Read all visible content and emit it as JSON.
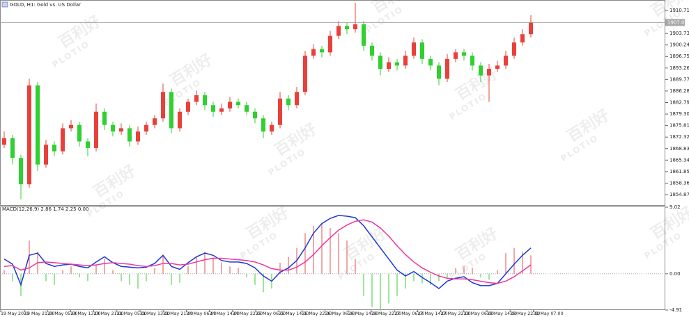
{
  "chart_data": [
    {
      "type": "candlestick",
      "title": "GOLD, H1: Gold vs. US Dollar",
      "ylim": [
        1851.71,
        1913.87
      ],
      "yticks": [
        1854.87,
        1858.36,
        1861.85,
        1865.34,
        1868.83,
        1872.32,
        1875.81,
        {
          "value": 1879.3,
          "label": "1879.30"
        },
        1882.79,
        1886.28,
        1889.77,
        1893.26,
        1896.75,
        1900.24,
        1903.73,
        1910.71
      ],
      "current_price": 1907.06,
      "up_color": "#e8403a",
      "down_color": "#2fd02f",
      "open": [
        1870,
        1872,
        1866,
        1858,
        1888,
        1864,
        1870,
        1868,
        1875,
        1876,
        1871,
        1869,
        1880,
        1876,
        1874,
        1875,
        1871,
        1874,
        1876,
        1878,
        1886,
        1875,
        1880,
        1883,
        1885,
        1882,
        1880,
        1881,
        1883,
        1882,
        1880,
        1878,
        1874,
        1876,
        1884,
        1882,
        1886,
        1897,
        1899,
        1898,
        1903,
        1906,
        1905,
        1906.5,
        1900,
        1897,
        1893,
        1895,
        1894,
        1897,
        1901,
        1896,
        1894,
        1890,
        1896,
        1898,
        1897,
        1894,
        1891,
        1893,
        1894,
        1897,
        1901,
        1903.5
      ],
      "high": [
        1874,
        1873,
        1867,
        1890,
        1889,
        1871.5,
        1871,
        1876.5,
        1877.5,
        1877,
        1872,
        1882.5,
        1881,
        1877,
        1876.5,
        1876,
        1875.5,
        1877,
        1879,
        1888.5,
        1887,
        1881,
        1884,
        1886.5,
        1886,
        1883,
        1882.5,
        1884.5,
        1884,
        1883,
        1881,
        1879,
        1877,
        1886,
        1885,
        1887.5,
        1898.5,
        1900.5,
        1900,
        1904.5,
        1907.5,
        1907,
        1913,
        1907.5,
        1901,
        1898,
        1896.5,
        1896,
        1898.5,
        1902.5,
        1902,
        1897,
        1895,
        1897.5,
        1899,
        1899,
        1898,
        1895,
        1894.5,
        1895.5,
        1898.5,
        1902.5,
        1905,
        1909.3
      ],
      "low": [
        1869,
        1864,
        1853.5,
        1857,
        1862,
        1863,
        1866.5,
        1867,
        1874,
        1869.5,
        1866.5,
        1868,
        1874.5,
        1872.5,
        1873,
        1869.5,
        1870,
        1873,
        1875,
        1877,
        1873.5,
        1874,
        1879,
        1882,
        1880.5,
        1878.5,
        1879,
        1880,
        1881,
        1879,
        1876.5,
        1872,
        1873,
        1875,
        1880.5,
        1881,
        1885,
        1896,
        1896.5,
        1897,
        1902,
        1903.5,
        1904,
        1898.5,
        1895.5,
        1891,
        1892,
        1892.5,
        1893,
        1896,
        1894.5,
        1892.5,
        1888,
        1889,
        1895,
        1895.5,
        1892.5,
        1889,
        1883,
        1892,
        1893,
        1896,
        1900,
        1902.5
      ],
      "close": [
        1872,
        1866,
        1858,
        1888,
        1864,
        1870,
        1868,
        1875,
        1876,
        1871,
        1869,
        1880,
        1876,
        1874,
        1875,
        1871,
        1874,
        1876,
        1878,
        1886,
        1875,
        1880,
        1883,
        1885,
        1882,
        1880,
        1881,
        1883,
        1882,
        1880,
        1878,
        1874,
        1876,
        1884,
        1882,
        1886,
        1897,
        1899,
        1898,
        1903,
        1906,
        1905,
        1906.5,
        1900,
        1897,
        1893,
        1895,
        1894,
        1897,
        1901,
        1896,
        1894,
        1890,
        1896,
        1898,
        1897,
        1894,
        1891,
        1893,
        1894,
        1897,
        1901,
        1903.5,
        1907
      ]
    },
    {
      "type": "macd",
      "title": "MACD(12,26,9) 2.86 1.74 2.25 0.00",
      "ylim": [
        -4.91,
        9.02
      ],
      "yticks": [
        9.02,
        {
          "value": 0,
          "label": "0.00"
        },
        -4.91
      ],
      "lines": [
        {
          "color": "#1a35d8",
          "values": [
            2,
            1.3,
            -1.5,
            2.5,
            2.8,
            1.4,
            1,
            1.2,
            1.3,
            1,
            0.8,
            1.6,
            2.3,
            1.5,
            1,
            0.9,
            0.8,
            0.9,
            1.4,
            2.5,
            1,
            0.6,
            1.5,
            2.3,
            2.8,
            2.5,
            1.8,
            1.6,
            1.6,
            1.4,
            0.8,
            -0.3,
            -1,
            0.2,
            0.8,
            1.8,
            3.5,
            5.5,
            6.8,
            7.5,
            7.9,
            7.8,
            7.6,
            6.5,
            5,
            3.5,
            2,
            0.5,
            -0.3,
            0.3,
            -0.5,
            -1.2,
            -2,
            -1,
            -0.6,
            -0.4,
            -1.2,
            -1.6,
            -1.6,
            -1.3,
            0,
            1.3,
            2.5,
            3.5
          ]
        },
        {
          "color": "#f0369b",
          "values": [
            1,
            1.1,
            0.5,
            0.8,
            1.5,
            1.6,
            1.5,
            1.4,
            1.3,
            1.2,
            1.1,
            1.2,
            1.4,
            1.5,
            1.4,
            1.3,
            1.1,
            1,
            1.1,
            1.4,
            1.4,
            1.2,
            1.3,
            1.6,
            1.9,
            2.1,
            2.1,
            2,
            1.9,
            1.8,
            1.6,
            1.2,
            0.7,
            0.5,
            0.5,
            0.9,
            1.6,
            2.6,
            3.8,
            4.9,
            5.9,
            6.6,
            7.1,
            7.3,
            7,
            6.2,
            5.1,
            3.8,
            2.6,
            1.6,
            0.8,
            0.2,
            -0.3,
            -0.6,
            -0.7,
            -0.7,
            -0.8,
            -1,
            -1.2,
            -1.3,
            -1,
            -0.4,
            0.4,
            1.2
          ]
        }
      ],
      "histogram": {
        "up_color": "#f08080",
        "down_color": "#6fdc6f",
        "values": [
          0.5,
          -1,
          -3,
          4.5,
          3,
          -1,
          -1.5,
          0.5,
          1,
          -0.5,
          -1,
          1.2,
          2,
          0.5,
          -1,
          -1.5,
          -2,
          -1,
          0.8,
          2.5,
          -1.5,
          -1.2,
          1,
          2.3,
          3,
          2.2,
          1.5,
          1,
          0.8,
          -0.5,
          -1.5,
          -2.5,
          -2,
          1.5,
          2.3,
          3.5,
          5.5,
          6.5,
          6.8,
          6.2,
          5.5,
          4.5,
          2,
          -3,
          -4.5,
          -5,
          -4,
          -3,
          -2,
          -1,
          -1.3,
          -1.5,
          -1,
          -0.5,
          0.8,
          1,
          0.8,
          -0.5,
          -0.8,
          0.5,
          2.8,
          3.5,
          3,
          2.5
        ]
      }
    }
  ],
  "x_labels": [
    "19 May 2021",
    "19 May 21:00",
    "20 May 05:00",
    "20 May 13:00",
    "20 May 21:00",
    "21 May 05:00",
    "21 May 13:00",
    "21 May 21:00",
    "24 May 06:00",
    "24 May 14:00",
    "24 May 22:00",
    "25 May 06:00",
    "25 May 14:00",
    "25 May 22:00",
    "26 May 06:00",
    "26 May 14:00",
    "26 May 22:00",
    "27 May 06:00",
    "27 May 14:00",
    "27 May 22:00",
    "28 May 06:00",
    "28 May 14:00",
    "28 May 22:00",
    "31 May 07:00"
  ],
  "watermark": {
    "brand": "PLOTIO",
    "name": "百利好"
  }
}
